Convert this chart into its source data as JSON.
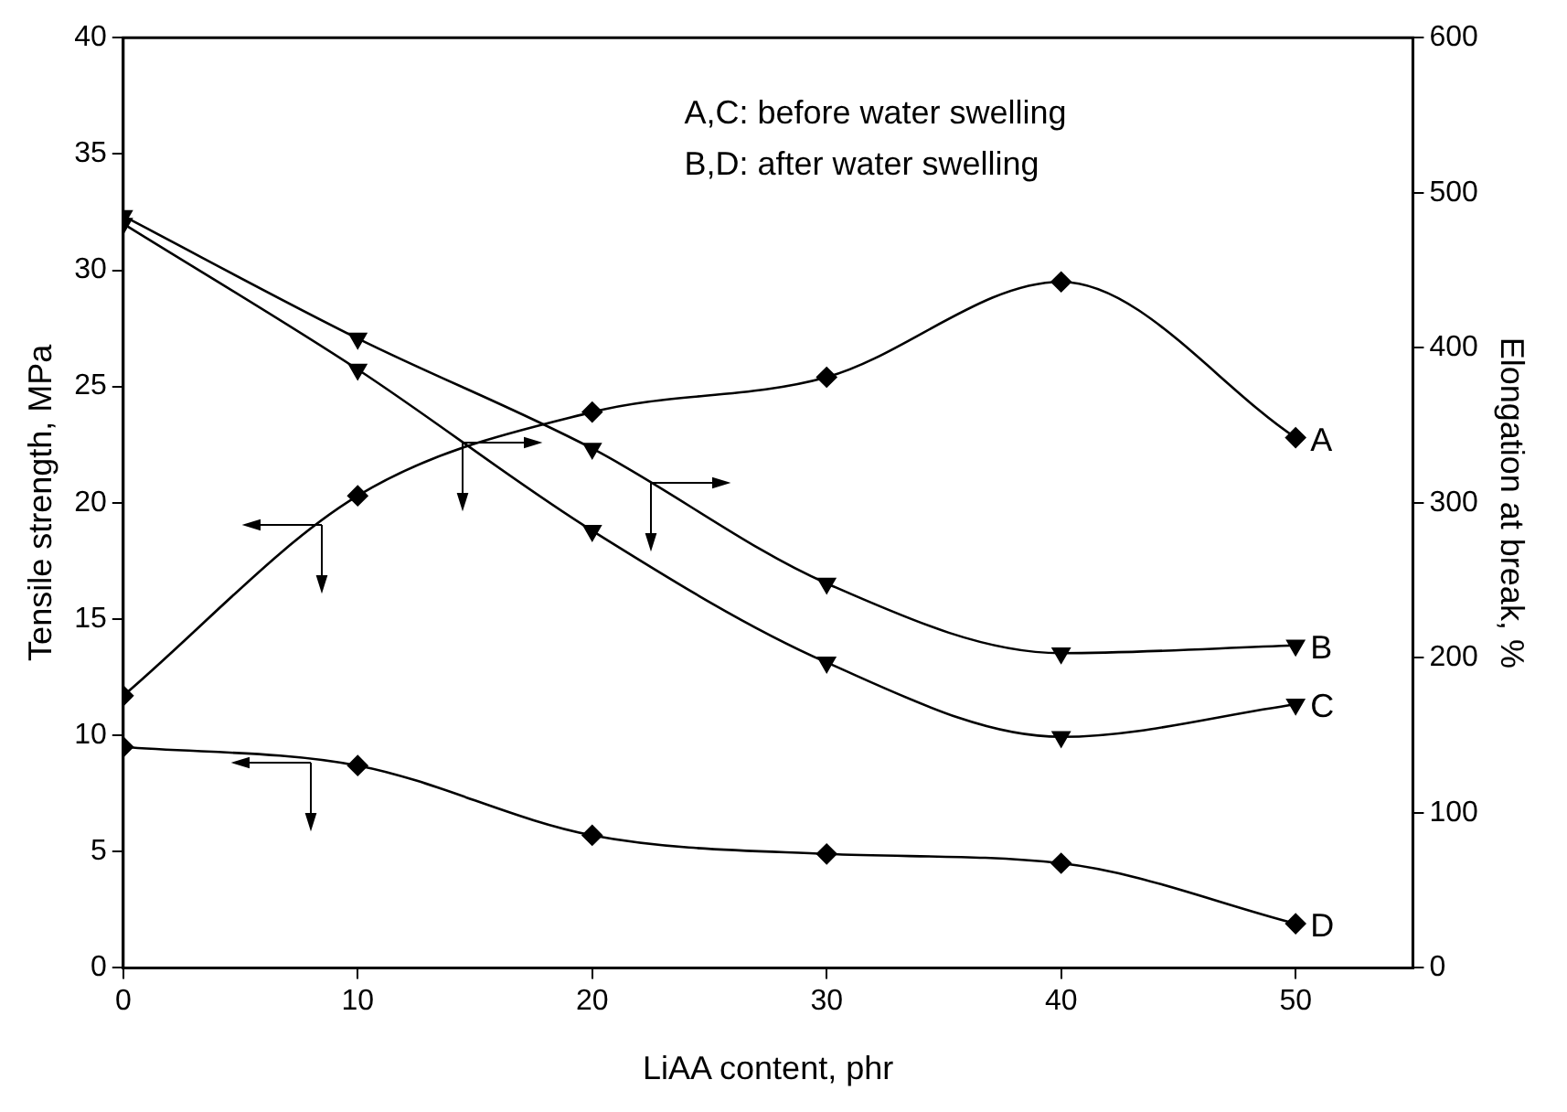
{
  "chart_data": {
    "type": "line",
    "xlabel": "LiAA content, phr",
    "ylabel": "Tensile strength, MPa",
    "y2label": "Elongation at break, %",
    "x": [
      0,
      10,
      20,
      30,
      40,
      50
    ],
    "series": [
      {
        "name": "A",
        "color": "#000000",
        "marker": "diamond",
        "values": [
          11.7,
          20.3,
          23.9,
          25.4,
          29.5,
          22.8
        ]
      },
      {
        "name": "B",
        "color": "#000000",
        "marker": "triangle",
        "axis": "y2",
        "values": [
          485,
          406,
          335,
          248,
          203,
          208
        ]
      },
      {
        "name": "C",
        "color": "#000000",
        "marker": "triangle",
        "axis": "y2",
        "values": [
          480,
          386,
          282,
          197,
          149,
          170
        ]
      },
      {
        "name": "D",
        "color": "#000000",
        "marker": "diamond",
        "values": [
          9.5,
          8.7,
          5.7,
          4.9,
          4.5,
          1.9
        ]
      }
    ],
    "xlim": [
      0,
      55
    ],
    "xticks": [
      0,
      10,
      20,
      30,
      40,
      50
    ],
    "ylim": [
      0,
      40
    ],
    "yticks": [
      0,
      5,
      10,
      15,
      20,
      25,
      30,
      35,
      40
    ],
    "y2lim": [
      0,
      600
    ],
    "y2ticks": [
      0,
      100,
      200,
      300,
      400,
      500,
      600
    ],
    "annotations": [
      "A,C: before water swelling",
      "B,D: after water swelling"
    ],
    "grid": false,
    "legend": false
  }
}
